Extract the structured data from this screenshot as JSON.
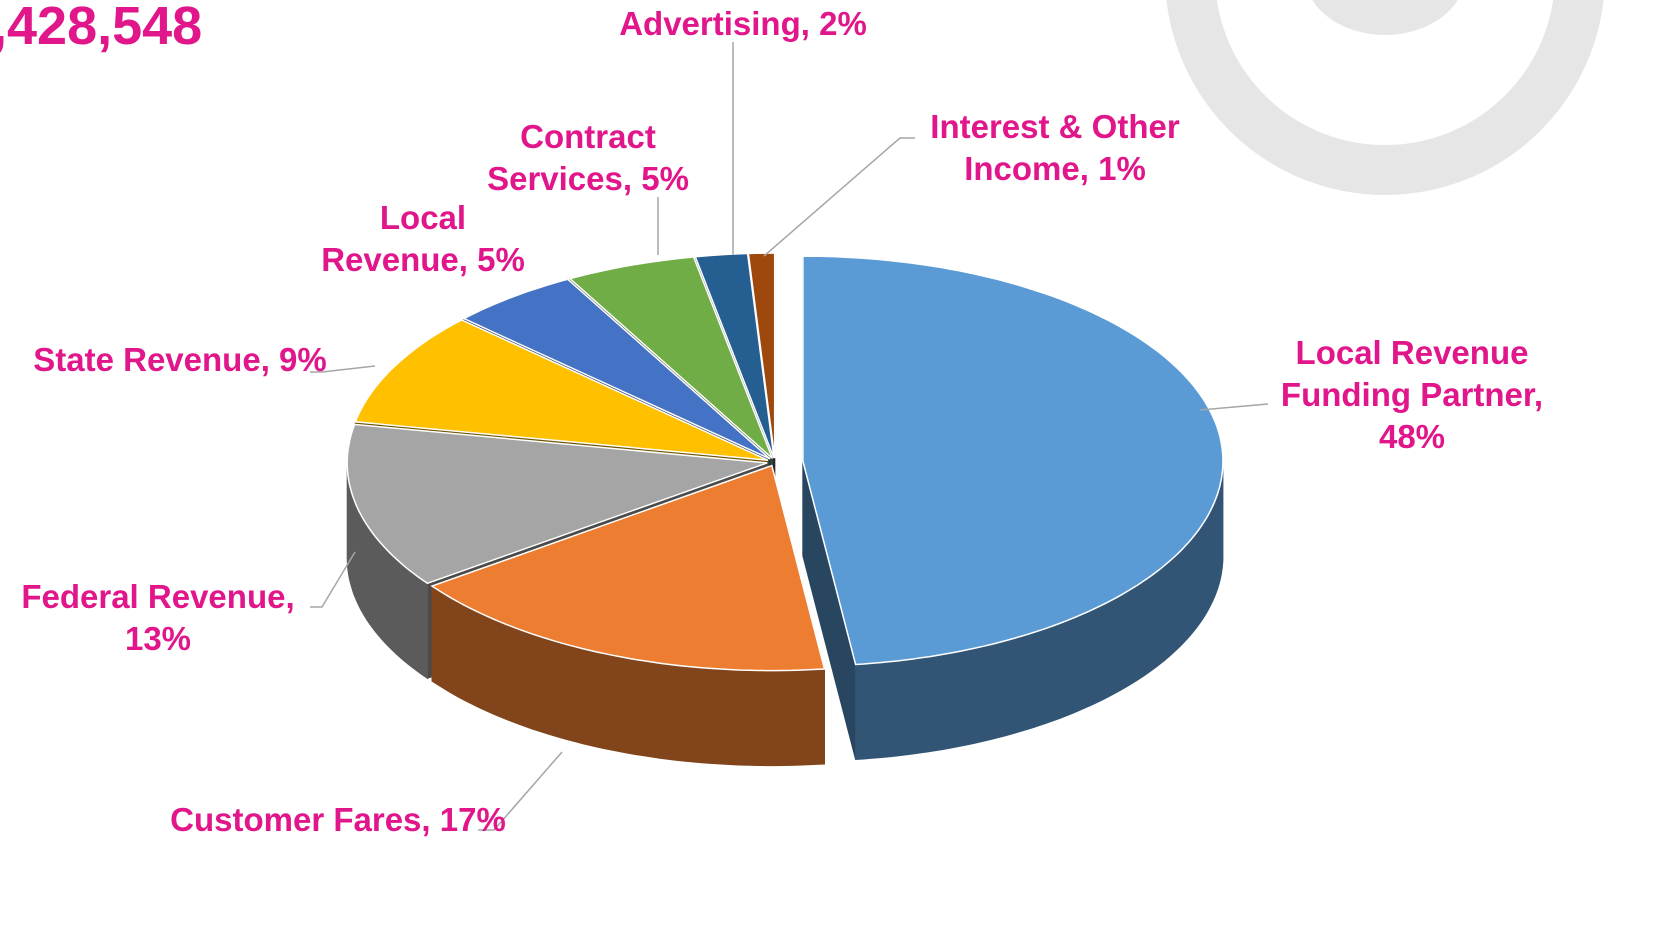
{
  "chart_data": {
    "type": "pie",
    "title": ",428,548",
    "categories": [
      "Local Revenue Funding Partner",
      "Customer Fares",
      "Federal Revenue",
      "State Revenue",
      "Local Revenue",
      "Contract Services",
      "Advertising",
      "Interest & Other Income"
    ],
    "values": [
      48,
      17,
      13,
      9,
      5,
      5,
      2,
      1
    ],
    "value_labels": [
      "48%",
      "17%",
      "13%",
      "9%",
      "5%",
      "5%",
      "2%",
      "1%"
    ],
    "separator": ",",
    "colors": [
      "#5b9bd5",
      "#ed7d31",
      "#a5a5a5",
      "#ffc000",
      "#4472c4",
      "#70ad47",
      "#255e91",
      "#9e480e"
    ]
  }
}
